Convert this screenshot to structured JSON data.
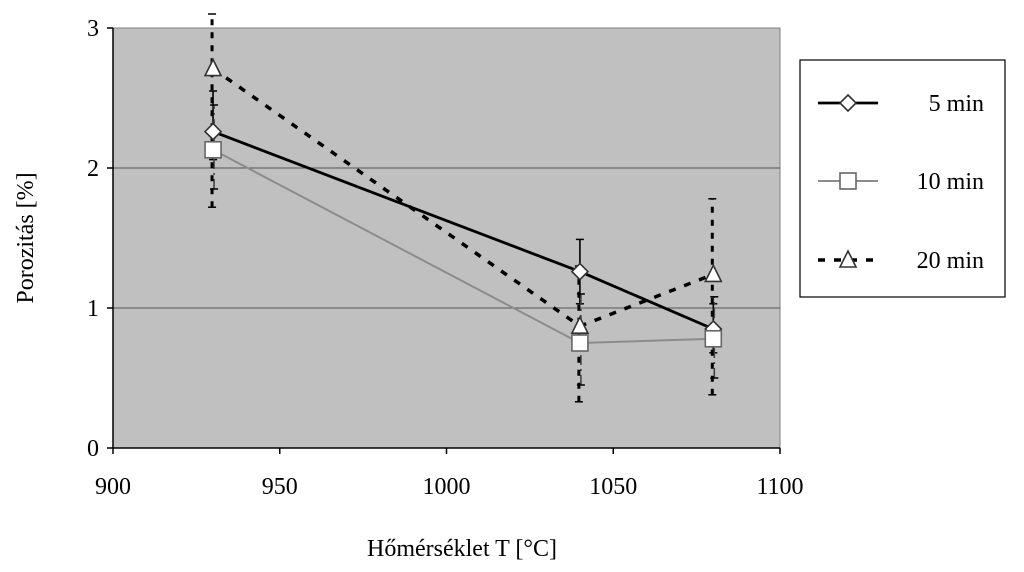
{
  "chart_data": {
    "type": "line",
    "title": "",
    "xlabel": "Hőmérséklet T [°C]",
    "ylabel": "Porozitás [%]",
    "xlim": [
      900,
      1100
    ],
    "ylim": [
      0,
      3
    ],
    "xticks": [
      "900",
      "950",
      "1000",
      "1050",
      "1100"
    ],
    "yticks": [
      "0",
      "1",
      "2",
      "3"
    ],
    "grid": "horizontal",
    "legend_position": "right",
    "plot_background": "#c0c0c0",
    "series": [
      {
        "name": "5 min",
        "style": "solid",
        "color": "#000000",
        "marker": "diamond",
        "x": [
          930,
          1040,
          1080
        ],
        "y": [
          2.26,
          1.26,
          0.85
        ],
        "err_low": [
          2.06,
          1.03,
          0.68
        ],
        "err_high": [
          2.55,
          1.49,
          1.03
        ]
      },
      {
        "name": "10 min",
        "style": "solid",
        "color": "#8c8c8c",
        "marker": "square",
        "x": [
          930,
          1040,
          1080
        ],
        "y": [
          2.13,
          0.75,
          0.78
        ],
        "err_low": [
          1.85,
          0.45,
          0.5
        ],
        "err_high": [
          2.45,
          1.1,
          1.08
        ]
      },
      {
        "name": "20 min",
        "style": "dashed",
        "color": "#000000",
        "marker": "triangle",
        "x": [
          930,
          1040,
          1080
        ],
        "y": [
          2.71,
          0.87,
          1.24
        ],
        "err_low": [
          1.72,
          0.33,
          0.38
        ],
        "err_high": [
          3.1,
          1.3,
          1.78
        ]
      }
    ]
  }
}
